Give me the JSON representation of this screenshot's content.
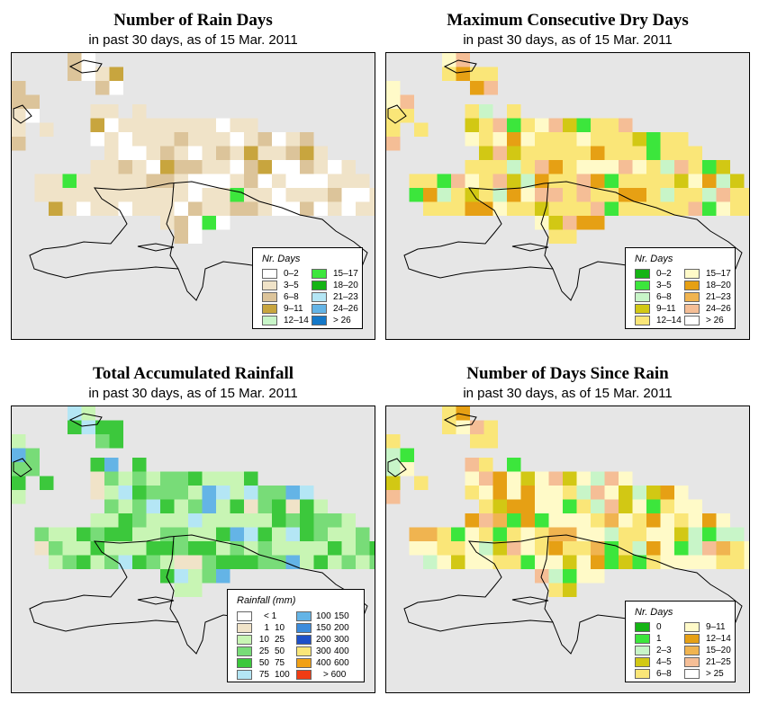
{
  "panels": [
    {
      "title": "Number of Rain Days",
      "subtitle": "in past 30 days, as of  15 Mar. 2011",
      "legend_title": "Nr. Days",
      "scheme": "raindays",
      "legend": [
        {
          "label": "0–2",
          "color": "#ffffff"
        },
        {
          "label": "3–5",
          "color": "#f0e3c8"
        },
        {
          "label": "6–8",
          "color": "#dcc49a"
        },
        {
          "label": "9–11",
          "color": "#c8a53e"
        },
        {
          "label": "12–14",
          "color": "#c8f5c8"
        },
        {
          "label": "15–17",
          "color": "#3ce63c"
        },
        {
          "label": "18–20",
          "color": "#14b414"
        },
        {
          "label": "21–23",
          "color": "#b4e6f5"
        },
        {
          "label": "24–26",
          "color": "#64b4e6"
        },
        {
          "label": "> 26",
          "color": "#1478c8"
        }
      ]
    },
    {
      "title": "Maximum Consecutive Dry Days",
      "subtitle": "in past 30 days, as of  15 Mar. 2011",
      "legend_title": "Nr. Days",
      "scheme": "drydays",
      "legend": [
        {
          "label": "0–2",
          "color": "#14b414"
        },
        {
          "label": "3–5",
          "color": "#3ce63c"
        },
        {
          "label": "6–8",
          "color": "#c8f5c8"
        },
        {
          "label": "9–11",
          "color": "#d2c814"
        },
        {
          "label": "12–14",
          "color": "#fae678"
        },
        {
          "label": "15–17",
          "color": "#fffac8"
        },
        {
          "label": "18–20",
          "color": "#e6a014"
        },
        {
          "label": "21–23",
          "color": "#f0b450"
        },
        {
          "label": "24–26",
          "color": "#f5be96"
        },
        {
          "label": "> 26",
          "color": "#ffffff"
        }
      ]
    },
    {
      "title": "Total Accumulated Rainfall",
      "subtitle": "in past 30 days, as of  15 Mar. 2011",
      "legend_title": "Rainfall (mm)",
      "scheme": "rainfall",
      "legend": [
        {
          "lo": "",
          "hi": "< 1",
          "color": "#ffffff"
        },
        {
          "lo": "1",
          "hi": "10",
          "color": "#f0e3c8"
        },
        {
          "lo": "10",
          "hi": "25",
          "color": "#c8f5b4"
        },
        {
          "lo": "25",
          "hi": "50",
          "color": "#78dc78"
        },
        {
          "lo": "50",
          "hi": "75",
          "color": "#3cc83c"
        },
        {
          "lo": "75",
          "hi": "100",
          "color": "#b4e6f5"
        },
        {
          "lo": "100",
          "hi": "150",
          "color": "#64b4e6"
        },
        {
          "lo": "150",
          "hi": "200",
          "color": "#3c8cdc"
        },
        {
          "lo": "200",
          "hi": "300",
          "color": "#1e50c8"
        },
        {
          "lo": "300",
          "hi": "400",
          "color": "#fae678"
        },
        {
          "lo": "400",
          "hi": "600",
          "color": "#f0a014"
        },
        {
          "lo": "",
          "hi": "> 600",
          "color": "#f03c14"
        }
      ]
    },
    {
      "title": "Number of Days Since Rain",
      "subtitle": "in past 30 days, as of  15 Mar. 2011",
      "legend_title": "Nr. Days",
      "scheme": "sincerain",
      "legend": [
        {
          "label": "0",
          "color": "#14b414"
        },
        {
          "label": "1",
          "color": "#3ce63c"
        },
        {
          "label": "2–3",
          "color": "#c8f5c8"
        },
        {
          "label": "4–5",
          "color": "#d2c814"
        },
        {
          "label": "6–8",
          "color": "#fae678"
        },
        {
          "label": "9–11",
          "color": "#fffac8"
        },
        {
          "label": "12–14",
          "color": "#e6a014"
        },
        {
          "label": "15–20",
          "color": "#f0b450"
        },
        {
          "label": "21–25",
          "color": "#f5be96"
        },
        {
          "label": "> 25",
          "color": "#ffffff"
        }
      ]
    }
  ]
}
